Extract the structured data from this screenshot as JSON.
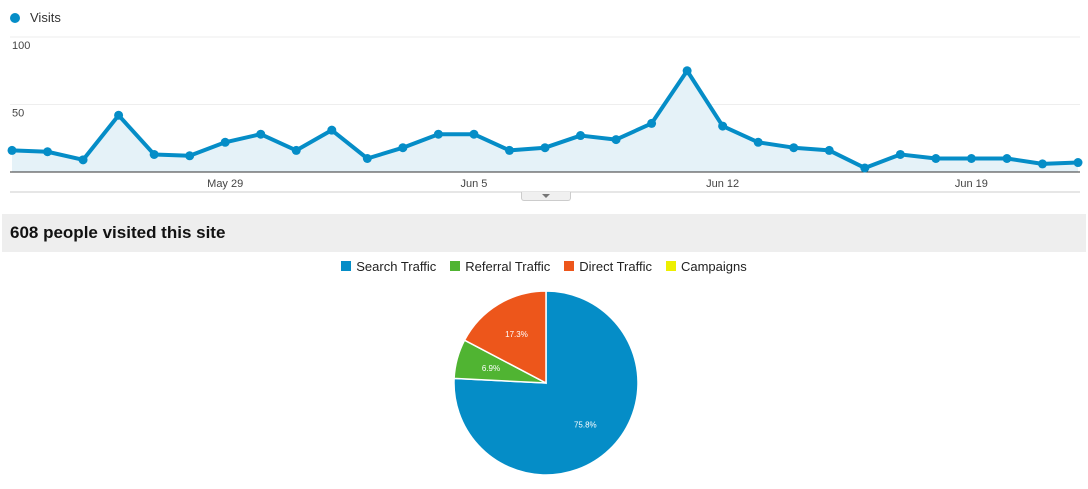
{
  "chart_data": [
    {
      "type": "line",
      "legend": "Visits",
      "series": [
        {
          "name": "Visits",
          "color": "#058dc7",
          "values": [
            16,
            15,
            9,
            42,
            13,
            12,
            22,
            28,
            16,
            31,
            10,
            18,
            28,
            28,
            16,
            18,
            27,
            24,
            36,
            75,
            34,
            22,
            18,
            16,
            3,
            13,
            10,
            10,
            10,
            6,
            7
          ]
        }
      ],
      "x_tick_labels": [
        "May 29",
        "Jun 5",
        "Jun 12",
        "Jun 19"
      ],
      "x_tick_indices": [
        6,
        13,
        20,
        27
      ],
      "y_tick_labels": [
        "100",
        "50"
      ],
      "y_ticks": [
        100,
        50
      ],
      "ylim": [
        0,
        100
      ],
      "grid": true
    },
    {
      "type": "pie",
      "title": "608 people visited this site",
      "legend_position": "top",
      "slices": [
        {
          "label": "Search Traffic",
          "value": 75.8,
          "value_label": "75.8%",
          "color": "#058dc7"
        },
        {
          "label": "Referral Traffic",
          "value": 6.9,
          "value_label": "6.9%",
          "color": "#50b432"
        },
        {
          "label": "Direct Traffic",
          "value": 17.3,
          "value_label": "17.3%",
          "color": "#ed561b"
        },
        {
          "label": "Campaigns",
          "value": 0,
          "value_label": "",
          "color": "#edef00"
        }
      ]
    }
  ]
}
